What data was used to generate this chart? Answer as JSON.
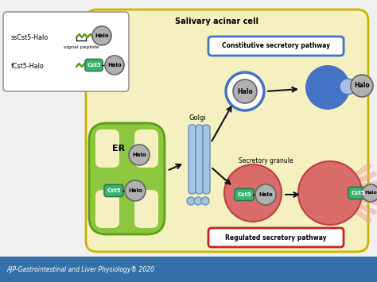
{
  "bg_color": "#f0f0f0",
  "cell_bg": "#f5f0c0",
  "cell_border": "#c8b400",
  "legend_box_bg": "#ffffff",
  "legend_box_border": "#888888",
  "green_color": "#8dc63f",
  "green_dark": "#5a9e1a",
  "blue_color": "#4472c4",
  "blue_light": "#a8bde8",
  "red_color": "#d96b6b",
  "red_dark": "#c04040",
  "gray_color": "#b0b0b0",
  "gray_dark": "#666666",
  "cst5_bg": "#3cb371",
  "cst5_border": "#2a7a50",
  "golgi_color": "#a8c4e0",
  "golgi_border": "#6090c0",
  "arrow_color": "#111111",
  "title_text": "Salivary acinar cell",
  "constitutive_text": "Constitutive secretory pathway",
  "regulated_text": "Regulated secretory pathway",
  "secretory_granule_text": "Secretory granule",
  "golgi_text": "Golgi",
  "er_text": "ER",
  "footer_text": "AJP-Gastrointestinal and Liver Physiology® 2020",
  "footer_bg": "#3570a8",
  "footer_text_color": "#ffffff",
  "ss_label": "ssCst5-Halo",
  "fc_label": "fCst5-Halo",
  "signal_peptide_label": "signal peptide",
  "halo_label": "Halo",
  "cst5_label": "Cst5"
}
